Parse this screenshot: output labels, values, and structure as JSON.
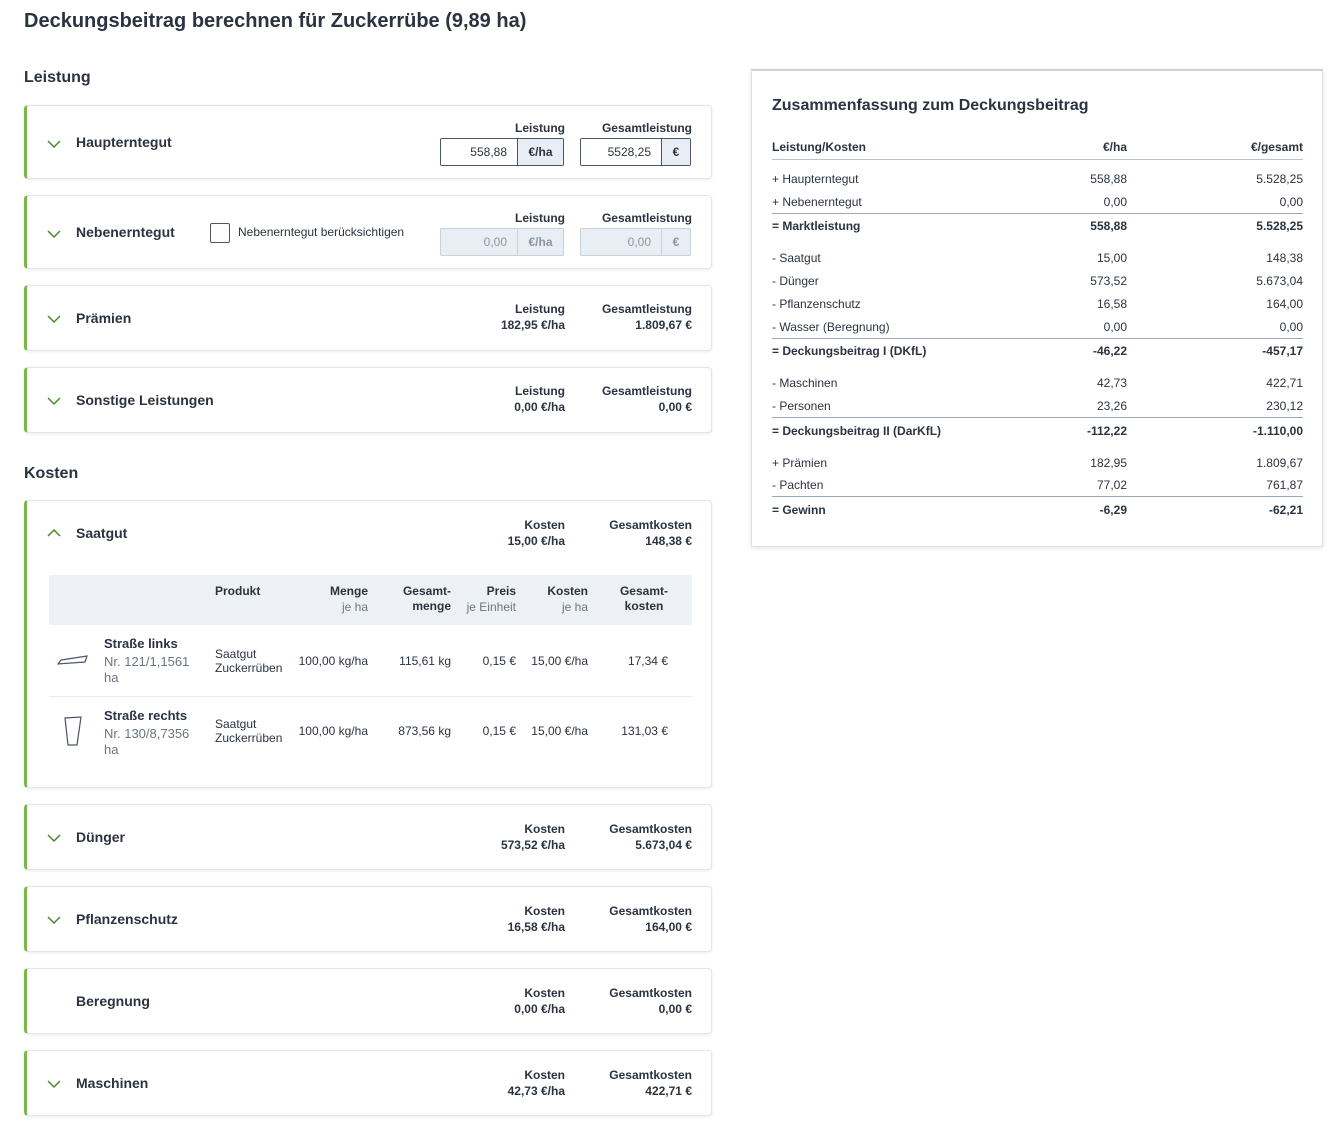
{
  "page_title": "Deckungsbeitrag berechnen für Zuckerrübe (9,89 ha)",
  "leistung_section": "Leistung",
  "kosten_section": "Kosten",
  "haupterntegut": {
    "label": "Haupterntegut",
    "leistung_label": "Leistung",
    "gesamt_label": "Gesamtleistung",
    "leistung_value": "558,88",
    "leistung_unit": "€/ha",
    "gesamt_value": "5528,25",
    "gesamt_unit": "€"
  },
  "nebenerntegut": {
    "label": "Nebenerntegut",
    "checkbox_label": "Nebenerntegut berücksichtigen",
    "leistung_label": "Leistung",
    "gesamt_label": "Gesamtleistung",
    "leistung_value": "0,00",
    "leistung_unit": "€/ha",
    "gesamt_value": "0,00",
    "gesamt_unit": "€"
  },
  "praemien": {
    "label": "Prämien",
    "m1_label": "Leistung",
    "m1_value": "182,95 €/ha",
    "m2_label": "Gesamtleistung",
    "m2_value": "1.809,67 €"
  },
  "sonstige": {
    "label": "Sonstige Leistungen",
    "m1_label": "Leistung",
    "m1_value": "0,00 €/ha",
    "m2_label": "Gesamtleistung",
    "m2_value": "0,00 €"
  },
  "saatgut": {
    "label": "Saatgut",
    "m1_label": "Kosten",
    "m1_value": "15,00 €/ha",
    "m2_label": "Gesamtkosten",
    "m2_value": "148,38 €",
    "table": {
      "headers": {
        "produkt": "Produkt",
        "menge": "Menge",
        "menge_sub": "je ha",
        "gesamtmenge_1": "Gesamt-",
        "gesamtmenge_2": "menge",
        "preis": "Preis",
        "preis_sub": "je Einheit",
        "kosten": "Kosten",
        "kosten_sub": "je ha",
        "gesamtkosten_1": "Gesamt-",
        "gesamtkosten_2": "kosten"
      },
      "rows": [
        {
          "field_name": "Straße links",
          "field_nr_1": "Nr. 121/1,1561",
          "field_nr_2": "ha",
          "produkt_1": "Saatgut",
          "produkt_2": "Zuckerrüben",
          "menge": "100,00 kg/ha",
          "gesamtmenge": "115,61 kg",
          "preis": "0,15 €",
          "kosten": "15,00 €/ha",
          "gesamtkosten": "17,34 €"
        },
        {
          "field_name": "Straße rechts",
          "field_nr_1": "Nr. 130/8,7356",
          "field_nr_2": "ha",
          "produkt_1": "Saatgut",
          "produkt_2": "Zuckerrüben",
          "menge": "100,00 kg/ha",
          "gesamtmenge": "873,56 kg",
          "preis": "0,15 €",
          "kosten": "15,00 €/ha",
          "gesamtkosten": "131,03 €"
        }
      ]
    }
  },
  "duenger": {
    "label": "Dünger",
    "m1_label": "Kosten",
    "m1_value": "573,52 €/ha",
    "m2_label": "Gesamtkosten",
    "m2_value": "5.673,04 €"
  },
  "pflanzenschutz": {
    "label": "Pflanzenschutz",
    "m1_label": "Kosten",
    "m1_value": "16,58 €/ha",
    "m2_label": "Gesamtkosten",
    "m2_value": "164,00 €"
  },
  "beregnung": {
    "label": "Beregnung",
    "m1_label": "Kosten",
    "m1_value": "0,00 €/ha",
    "m2_label": "Gesamtkosten",
    "m2_value": "0,00 €"
  },
  "maschinen": {
    "label": "Maschinen",
    "m1_label": "Kosten",
    "m1_value": "42,73 €/ha",
    "m2_label": "Gesamtkosten",
    "m2_value": "422,71 €"
  },
  "summary": {
    "title": "Zusammenfassung zum Deckungsbeitrag",
    "header": {
      "c1": "Leistung/Kosten",
      "c2": "€/ha",
      "c3": "€/gesamt"
    },
    "rows": [
      {
        "c1": "+ Haupterntegut",
        "c2": "558,88",
        "c3": "5.528,25"
      },
      {
        "c1": "+ Nebenerntegut",
        "c2": "0,00",
        "c3": "0,00"
      },
      {
        "c1": "= Marktleistung",
        "c2": "558,88",
        "c3": "5.528,25"
      },
      {
        "c1": "- Saatgut",
        "c2": "15,00",
        "c3": "148,38"
      },
      {
        "c1": "- Dünger",
        "c2": "573,52",
        "c3": "5.673,04"
      },
      {
        "c1": "- Pflanzenschutz",
        "c2": "16,58",
        "c3": "164,00"
      },
      {
        "c1": "- Wasser (Beregnung)",
        "c2": "0,00",
        "c3": "0,00"
      },
      {
        "c1": "= Deckungsbeitrag I (DKfL)",
        "c2": "-46,22",
        "c3": "-457,17"
      },
      {
        "c1": "- Maschinen",
        "c2": "42,73",
        "c3": "422,71"
      },
      {
        "c1": "- Personen",
        "c2": "23,26",
        "c3": "230,12"
      },
      {
        "c1": "= Deckungsbeitrag II (DarKfL)",
        "c2": "-112,22",
        "c3": "-1.110,00"
      },
      {
        "c1": "+ Prämien",
        "c2": "182,95",
        "c3": "1.809,67"
      },
      {
        "c1": "- Pachten",
        "c2": "77,02",
        "c3": "761,87"
      },
      {
        "c1": "= Gewinn",
        "c2": "-6,29",
        "c3": "-62,21"
      }
    ]
  },
  "colors": {
    "accent": "#7ab648",
    "text": "#2b3340",
    "muted": "#6b7582",
    "input_bg": "#e9eef4"
  },
  "icons": {
    "expand": "chevron-down-icon",
    "collapse": "chevron-up-icon",
    "field": "field-shape-icon"
  }
}
